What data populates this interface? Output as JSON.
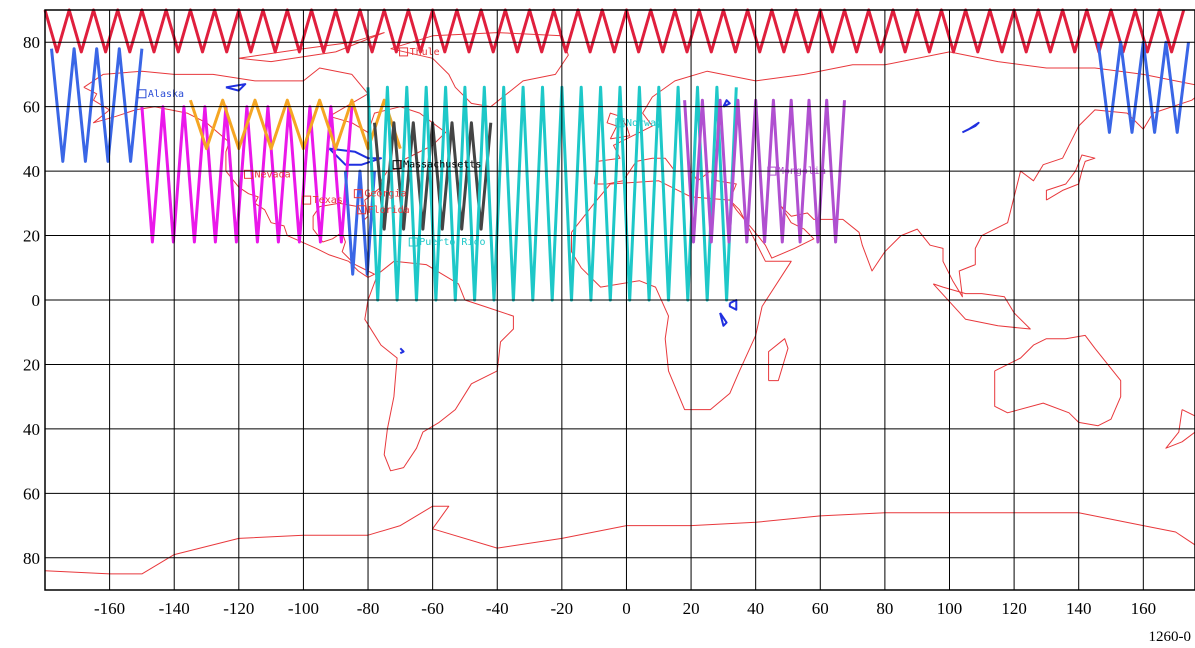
{
  "map": {
    "figure_id": "1260-0",
    "lon_range": [
      -180,
      176
    ],
    "lat_range": [
      -90,
      90
    ],
    "grid_lon_step": 20,
    "grid_lat_step": 20,
    "lon_ticks": [
      "-160",
      "-140",
      "-120",
      "-100",
      "-80",
      "-60",
      "-40",
      "-20",
      "0",
      "20",
      "40",
      "60",
      "80",
      "100",
      "120",
      "140",
      "160"
    ],
    "lat_tick_labels": [
      {
        "lat": 80,
        "label": "80"
      },
      {
        "lat": 60,
        "label": "60"
      },
      {
        "lat": 40,
        "label": "40"
      },
      {
        "lat": 20,
        "label": "20"
      },
      {
        "lat": 0,
        "label": "0"
      },
      {
        "lat": -20,
        "label": "20"
      },
      {
        "lat": -40,
        "label": "40"
      },
      {
        "lat": -60,
        "label": "60"
      },
      {
        "lat": -80,
        "label": "80"
      }
    ],
    "colors": {
      "coastline": "#e8383c",
      "lakes": "#2030e0",
      "grid": "#000000"
    },
    "places": [
      {
        "name": "Thule",
        "lon": -69,
        "lat": 77,
        "color": "#e8383c"
      },
      {
        "name": "Alaska",
        "lon": -150,
        "lat": 64,
        "color": "#2a4cd6"
      },
      {
        "name": "Massachusetts",
        "lon": -71,
        "lat": 42,
        "color": "#000000"
      },
      {
        "name": "Georgia",
        "lon": -83,
        "lat": 33,
        "color": "#e8383c"
      },
      {
        "name": "Texas",
        "lon": -99,
        "lat": 31,
        "color": "#e8383c"
      },
      {
        "name": "Nevada",
        "lon": -117,
        "lat": 39,
        "color": "#e8383c"
      },
      {
        "name": "Florida",
        "lon": -82,
        "lat": 28,
        "color": "#e8383c"
      },
      {
        "name": "Puerto Rico",
        "lon": -66,
        "lat": 18,
        "color": "#1ec8c8"
      },
      {
        "name": "Norway",
        "lon": -2,
        "lat": 55,
        "color": "#1ec8c8"
      },
      {
        "name": "Mongolia",
        "lon": 45,
        "lat": 40,
        "color": "#b050d0"
      }
    ],
    "tracks": [
      {
        "color": "#e01f3d",
        "from_lon": -180,
        "to_lon": 176,
        "lat_hi": 90,
        "lat_lo": 77,
        "spacing": 7.5
      },
      {
        "color": "#3a66e6",
        "from_lon": -178,
        "to_lon": -150,
        "lat_hi": 78,
        "lat_lo": 43,
        "spacing": 7
      },
      {
        "color": "#ea18ea",
        "from_lon": -150,
        "to_lon": -85,
        "lat_hi": 60,
        "lat_lo": 18,
        "spacing": 6.5
      },
      {
        "color": "#f5a623",
        "from_lon": -135,
        "to_lon": -70,
        "lat_hi": 62,
        "lat_lo": 47,
        "spacing": 10
      },
      {
        "color": "#3a66e6",
        "from_lon": -87,
        "to_lon": -78,
        "lat_hi": 40,
        "lat_lo": 8,
        "spacing": 4.5
      },
      {
        "color": "#444444",
        "from_lon": -78,
        "to_lon": -41,
        "lat_hi": 55,
        "lat_lo": 22,
        "spacing": 6
      },
      {
        "color": "#1ec8c8",
        "from_lon": -80,
        "to_lon": 36,
        "lat_hi": 66,
        "lat_lo": 0,
        "spacing": 6
      },
      {
        "color": "#b050d0",
        "from_lon": 18,
        "to_lon": 70,
        "lat_hi": 62,
        "lat_lo": 18,
        "spacing": 5.5
      },
      {
        "color": "#3a66e6",
        "from_lon": 146,
        "to_lon": 176,
        "lat_hi": 80,
        "lat_lo": 52,
        "spacing": 7
      }
    ]
  }
}
